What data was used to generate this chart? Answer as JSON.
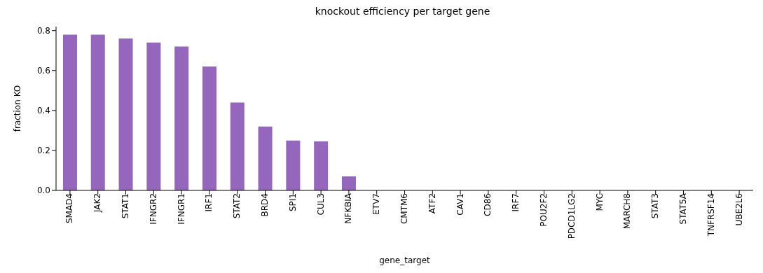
{
  "chart_data": {
    "type": "bar",
    "title": "knockout efficiency per target gene",
    "xlabel": "gene_target",
    "ylabel": "fraction KO",
    "categories": [
      "SMAD4",
      "JAK2",
      "STAT1",
      "IFNGR2",
      "IFNGR1",
      "IRF1",
      "STAT2",
      "BRD4",
      "SPI1",
      "CUL3",
      "NFKBIA",
      "ETV7",
      "CMTM6",
      "ATF2",
      "CAV1",
      "CD86",
      "IRF7",
      "POU2F2",
      "PDCD1LG2",
      "MYC",
      "MARCH8",
      "STAT3",
      "STAT5A",
      "TNFRSF14",
      "UBE2L6"
    ],
    "values": [
      0.78,
      0.78,
      0.76,
      0.74,
      0.72,
      0.62,
      0.44,
      0.32,
      0.25,
      0.245,
      0.07,
      0,
      0,
      0,
      0,
      0,
      0,
      0,
      0,
      0,
      0,
      0,
      0,
      0,
      0
    ],
    "color": "#9467bd",
    "ylim": [
      0,
      0.82
    ],
    "yticks": [
      {
        "value": 0,
        "label": "0.0"
      },
      {
        "value": 0.2,
        "label": "0.2"
      },
      {
        "value": 0.4,
        "label": "0.4"
      },
      {
        "value": 0.6,
        "label": "0.6"
      },
      {
        "value": 0.8,
        "label": "0.8"
      }
    ],
    "grid": false,
    "legend": false
  }
}
